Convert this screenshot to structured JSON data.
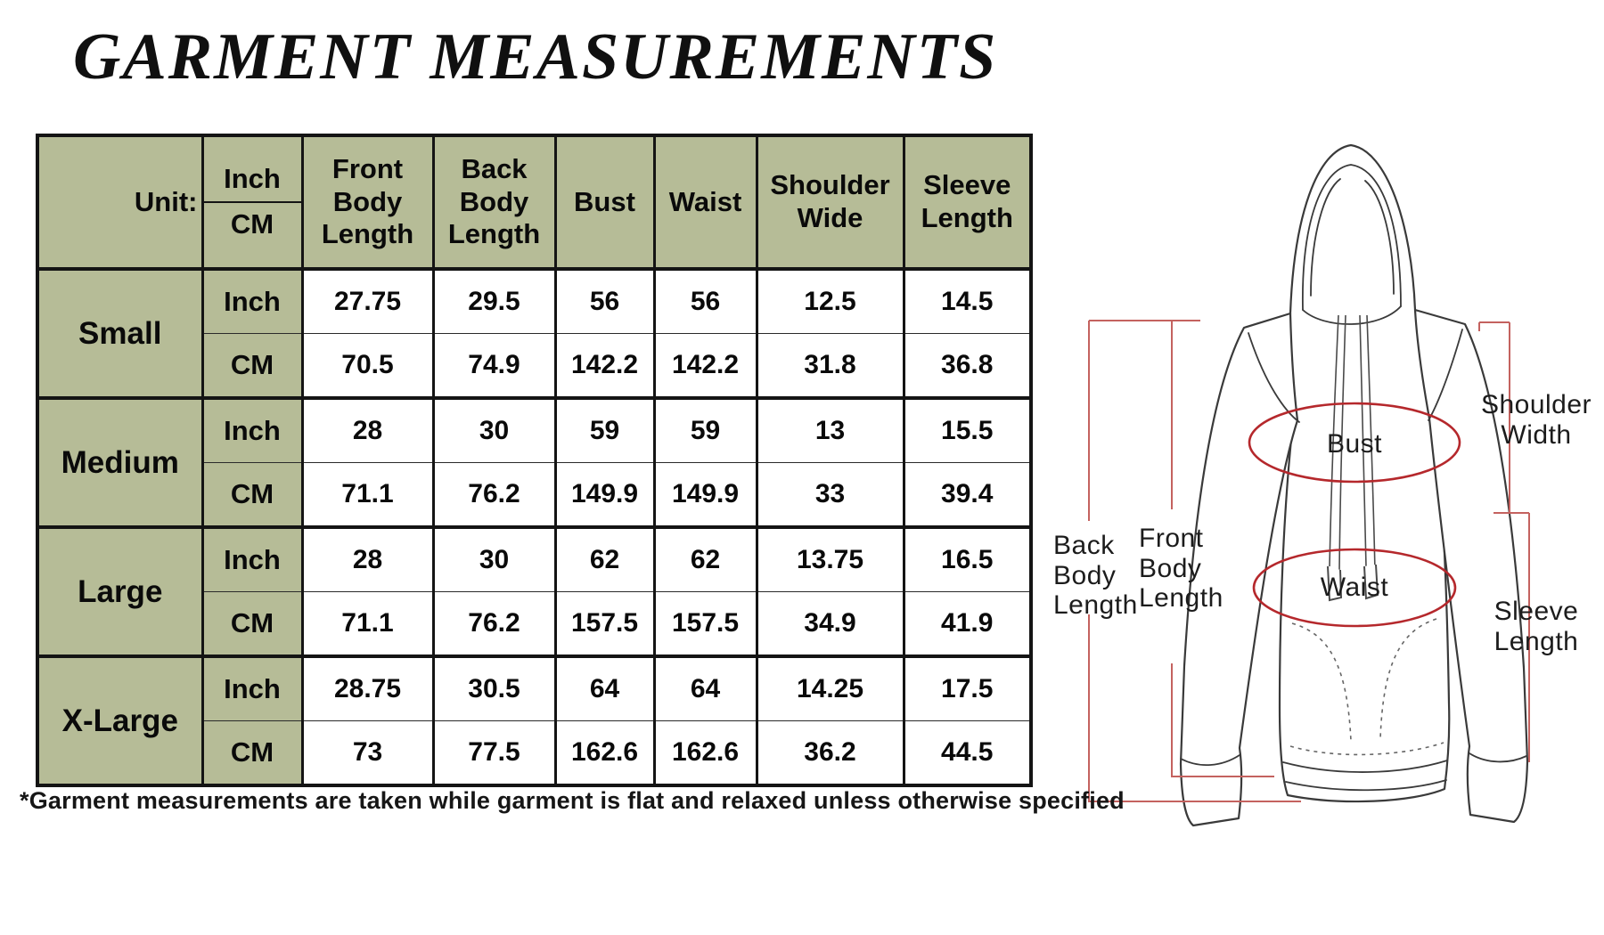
{
  "title": "GARMENT MEASUREMENTS",
  "table": {
    "unit_label": "Unit:",
    "unit_labels": [
      "Inch",
      "CM"
    ],
    "columns": [
      "Front Body Length",
      "Back Body Length",
      "Bust",
      "Waist",
      "Shoulder Wide",
      "Sleeve Length"
    ],
    "rows": [
      {
        "size": "Small",
        "inch": [
          "27.75",
          "29.5",
          "56",
          "56",
          "12.5",
          "14.5"
        ],
        "cm": [
          "70.5",
          "74.9",
          "142.2",
          "142.2",
          "31.8",
          "36.8"
        ]
      },
      {
        "size": "Medium",
        "inch": [
          "28",
          "30",
          "59",
          "59",
          "13",
          "15.5"
        ],
        "cm": [
          "71.1",
          "76.2",
          "149.9",
          "149.9",
          "33",
          "39.4"
        ]
      },
      {
        "size": "Large",
        "inch": [
          "28",
          "30",
          "62",
          "62",
          "13.75",
          "16.5"
        ],
        "cm": [
          "71.1",
          "76.2",
          "157.5",
          "157.5",
          "34.9",
          "41.9"
        ]
      },
      {
        "size": "X-Large",
        "inch": [
          "28.75",
          "30.5",
          "64",
          "64",
          "14.25",
          "17.5"
        ],
        "cm": [
          "73",
          "77.5",
          "162.6",
          "162.6",
          "36.2",
          "44.5"
        ]
      }
    ]
  },
  "diagram": {
    "labels": {
      "bust": "Bust",
      "waist": "Waist",
      "shoulder_width": "Shoulder\nWidth",
      "sleeve_length": "Sleeve\nLength",
      "back_body_length": "Back\nBody\nLength",
      "front_body_length": "Front\nBody\nLength"
    }
  },
  "footnote": "*Garment measurements are taken while garment is flat and relaxed unless otherwise specified",
  "colors": {
    "header_green": "#b6bc97",
    "table_border": "#141414",
    "red_measure_line": "#c4625f",
    "red_ellipse": "#b5282c",
    "garment_outline": "#3a3a3a"
  }
}
